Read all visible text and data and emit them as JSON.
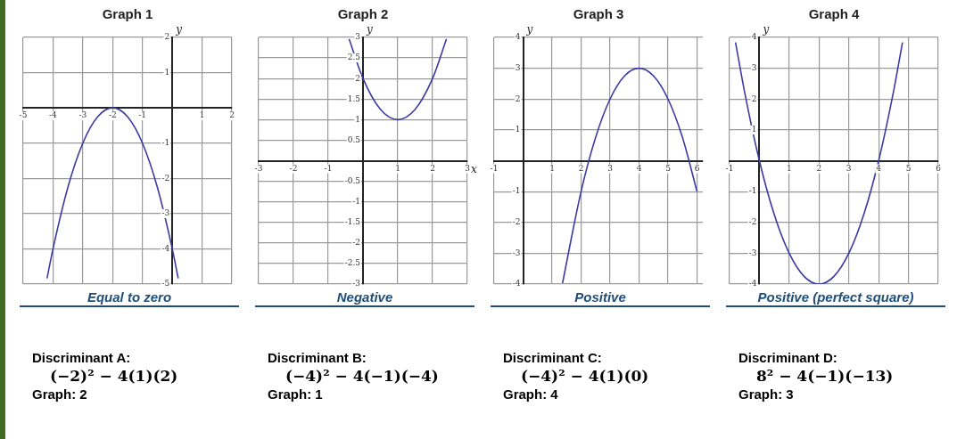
{
  "chart_data": [
    {
      "type": "line",
      "title": "Graph 1",
      "ylabel": "y",
      "grid": true,
      "marker": "none",
      "line_style": "solid",
      "xlim": [
        -5,
        2
      ],
      "xticks": [
        -5,
        -4,
        -3,
        -2,
        -1,
        1,
        2
      ],
      "ylim": [
        -5,
        2
      ],
      "yticks": [
        -5,
        -4,
        -3,
        -2,
        -1,
        1,
        2
      ],
      "series": [
        {
          "color": "#3b3ba3",
          "x": [
            -4.2,
            -4,
            -3.5,
            -3,
            -2.5,
            -2,
            -1.5,
            -1,
            -0.5,
            0,
            0.2
          ],
          "values": [
            -4.84,
            -4,
            -2.25,
            -1,
            -0.25,
            0,
            -0.25,
            -1,
            -2.25,
            -4,
            -4.84
          ]
        }
      ],
      "annotations": [
        "Equal to zero",
        "Discriminant A:",
        "(−2)² − 4(1)(2)",
        "Graph: 2"
      ]
    },
    {
      "type": "line",
      "title": "Graph 2",
      "xlabel": "x",
      "ylabel": "y",
      "grid": true,
      "marker": "none",
      "line_style": "solid",
      "xlim": [
        -3,
        3
      ],
      "xticks": [
        -3,
        -2,
        -1,
        1,
        2,
        3
      ],
      "ylim": [
        -3,
        3
      ],
      "yticks": [
        -3,
        -2.5,
        -2,
        -1.5,
        -1,
        -0.5,
        0.5,
        1,
        1.5,
        2,
        2.5,
        3
      ],
      "series": [
        {
          "color": "#3b3ba3",
          "x": [
            -0.4,
            0,
            0.5,
            1,
            1.5,
            2,
            2.4
          ],
          "values": [
            2.96,
            2,
            1.25,
            1,
            1.25,
            2,
            2.96
          ]
        }
      ],
      "annotations": [
        "Negative",
        "Discriminant B:",
        "(−4)² − 4(−1)(−4)",
        "Graph: 1"
      ]
    },
    {
      "type": "line",
      "title": "Graph 3",
      "ylabel": "y",
      "grid": true,
      "marker": "none",
      "line_style": "solid",
      "xlim": [
        -1,
        6.2
      ],
      "xticks": [
        -1,
        1,
        2,
        3,
        4,
        5,
        6
      ],
      "ylim": [
        -4,
        4
      ],
      "yticks": [
        -4,
        -3,
        -2,
        -1,
        1,
        2,
        3,
        4
      ],
      "series": [
        {
          "color": "#3b3ba3",
          "x": [
            1.36,
            2,
            2.5,
            3,
            3.5,
            4,
            4.5,
            5,
            5.5,
            6
          ],
          "values": [
            -3.97,
            -1,
            0.75,
            2,
            2.75,
            3,
            2.75,
            2,
            0.75,
            -1
          ]
        }
      ],
      "annotations": [
        "Positive",
        "Discriminant C:",
        "(−4)² − 4(1)(0)",
        "Graph: 4"
      ]
    },
    {
      "type": "line",
      "title": "Graph 4",
      "ylabel": "y",
      "grid": true,
      "marker": "none",
      "line_style": "solid",
      "xlim": [
        -1,
        6
      ],
      "xticks": [
        -1,
        1,
        2,
        3,
        4,
        5,
        6
      ],
      "ylim": [
        -4,
        4
      ],
      "yticks": [
        -4,
        -3,
        -2,
        -1,
        1,
        2,
        3,
        4
      ],
      "series": [
        {
          "color": "#3b3ba3",
          "x": [
            -0.8,
            -0.5,
            0,
            0.5,
            1,
            1.5,
            2,
            2.5,
            3,
            3.5,
            4,
            4.5,
            4.8
          ],
          "values": [
            3.84,
            2.25,
            0,
            -1.75,
            -3,
            -3.75,
            -4,
            -3.75,
            -3,
            -1.75,
            0,
            2.25,
            3.84
          ]
        }
      ],
      "annotations": [
        "Positive (perfect square)",
        "Discriminant D:",
        "8² − 4(−1)(−13)",
        "Graph: 3"
      ]
    }
  ]
}
